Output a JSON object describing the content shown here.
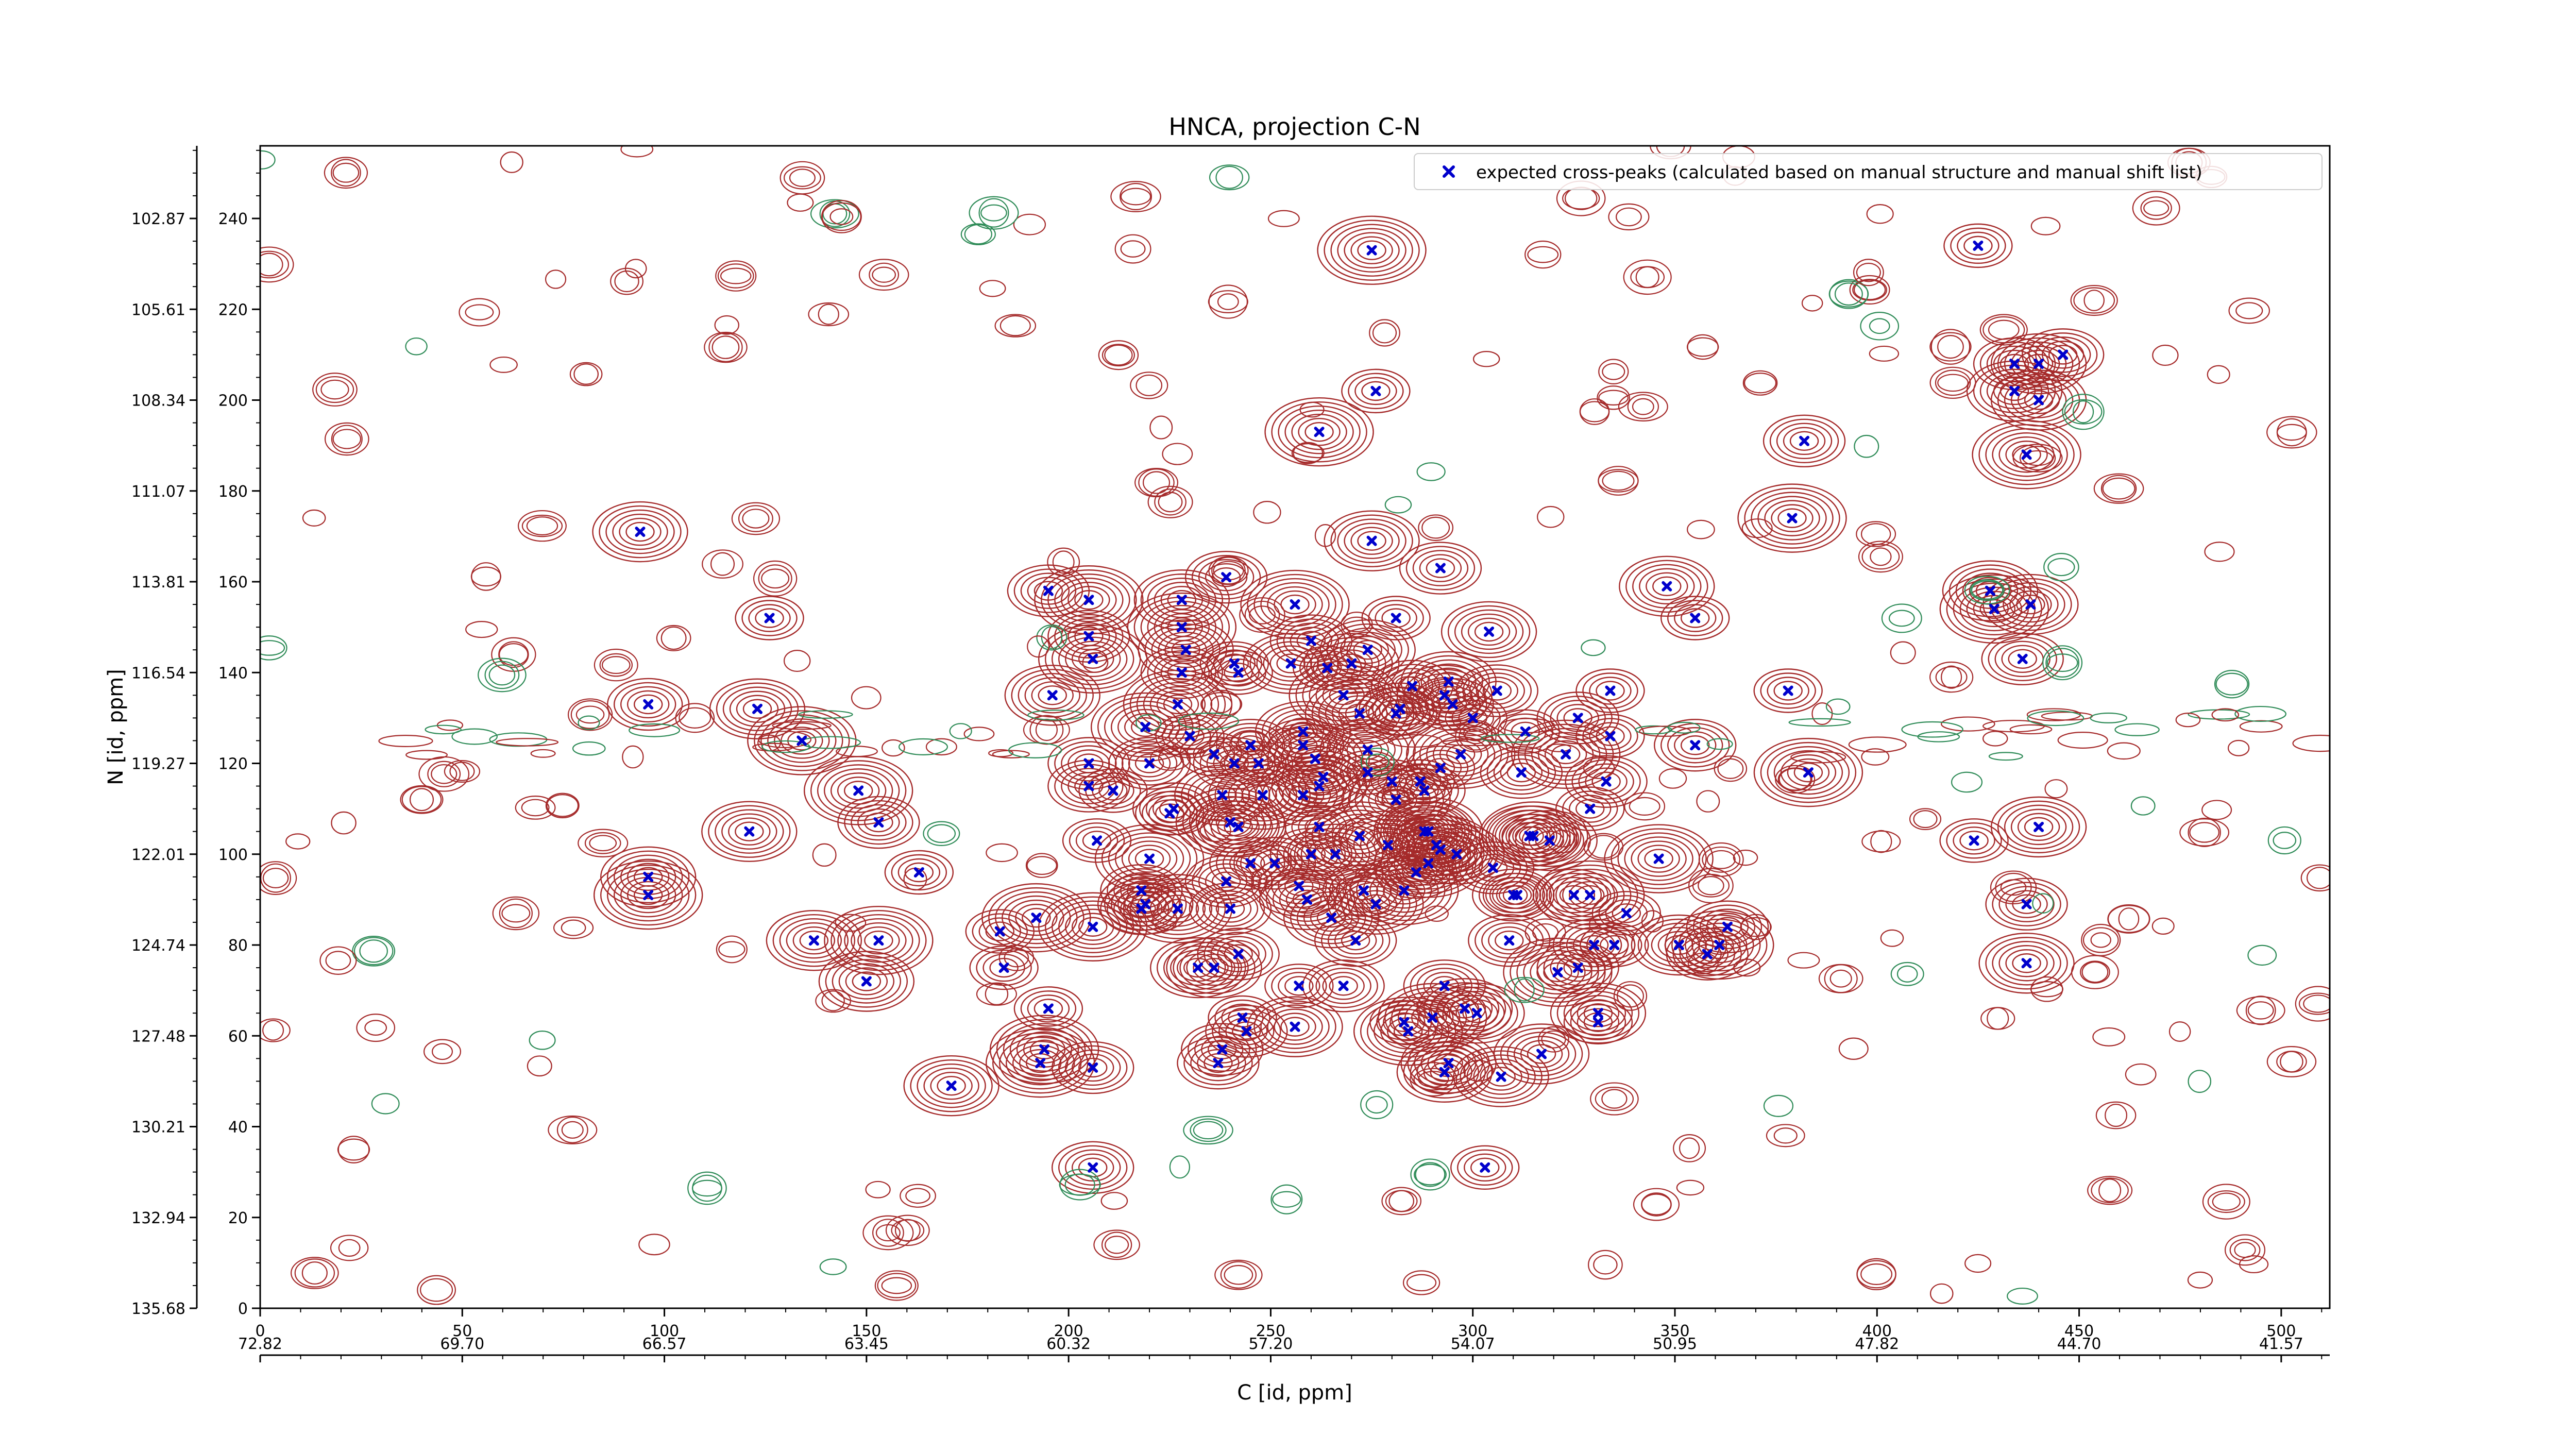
{
  "chart_data": {
    "type": "scatter",
    "title": "HNCA, projection C-N",
    "xlabel": "C [id, ppm]",
    "ylabel": "N [id, ppm]",
    "xlim": [
      0,
      512
    ],
    "ylim": [
      0,
      256
    ],
    "x_ticks": [
      0,
      50,
      100,
      150,
      200,
      250,
      300,
      350,
      400,
      450,
      500
    ],
    "y_ticks": [
      0,
      20,
      40,
      60,
      80,
      100,
      120,
      140,
      160,
      180,
      200,
      220,
      240
    ],
    "secondary_x_ticks": [
      "72.82",
      "69.70",
      "66.57",
      "63.45",
      "60.32",
      "57.20",
      "54.07",
      "50.95",
      "47.82",
      "44.70",
      "41.57"
    ],
    "secondary_y_ticks": [
      "135.68",
      "132.94",
      "130.21",
      "127.48",
      "124.74",
      "122.01",
      "119.27",
      "116.54",
      "113.81",
      "111.07",
      "108.34",
      "105.61",
      "102.87"
    ],
    "legend": {
      "position": "top-right",
      "entries": [
        {
          "label": "expected cross-peaks (calculated based on manual structure and manual shift list)",
          "color": "#0000cc",
          "marker": "x"
        }
      ]
    },
    "contour_colors": {
      "positive": "#a52a2a",
      "negative": "#2e8b57"
    },
    "grid": false,
    "series": [
      {
        "name": "expected cross-peaks (calculated based on manual structure and manual shift list)",
        "points": [
          [
            94,
            171
          ],
          [
            96,
            133
          ],
          [
            96,
            95
          ],
          [
            96,
            91
          ],
          [
            121,
            105
          ],
          [
            123,
            132
          ],
          [
            126,
            152
          ],
          [
            134,
            125
          ],
          [
            137,
            81
          ],
          [
            148,
            114
          ],
          [
            150,
            72
          ],
          [
            153,
            107
          ],
          [
            153,
            81
          ],
          [
            163,
            96
          ],
          [
            171,
            49
          ],
          [
            183,
            83
          ],
          [
            184,
            75
          ],
          [
            192,
            86
          ],
          [
            193,
            54
          ],
          [
            194,
            57
          ],
          [
            195,
            66
          ],
          [
            195,
            158
          ],
          [
            196,
            135
          ],
          [
            205,
            120
          ],
          [
            205,
            115
          ],
          [
            205,
            148
          ],
          [
            205,
            156
          ],
          [
            206,
            143
          ],
          [
            206,
            31
          ],
          [
            206,
            53
          ],
          [
            206,
            84
          ],
          [
            207,
            103
          ],
          [
            211,
            114
          ],
          [
            218,
            92
          ],
          [
            218,
            88
          ],
          [
            219,
            89
          ],
          [
            219,
            128
          ],
          [
            220,
            120
          ],
          [
            220,
            99
          ],
          [
            225,
            109
          ],
          [
            226,
            110
          ],
          [
            227,
            88
          ],
          [
            227,
            133
          ],
          [
            228,
            140
          ],
          [
            228,
            156
          ],
          [
            228,
            150
          ],
          [
            229,
            145
          ],
          [
            230,
            126
          ],
          [
            232,
            75
          ],
          [
            236,
            122
          ],
          [
            236,
            75
          ],
          [
            237,
            54
          ],
          [
            238,
            113
          ],
          [
            238,
            57
          ],
          [
            239,
            94
          ],
          [
            239,
            161
          ],
          [
            240,
            88
          ],
          [
            240,
            107
          ],
          [
            241,
            120
          ],
          [
            241,
            142
          ],
          [
            242,
            78
          ],
          [
            242,
            140
          ],
          [
            242,
            106
          ],
          [
            243,
            64
          ],
          [
            244,
            61
          ],
          [
            245,
            98
          ],
          [
            245,
            124
          ],
          [
            247,
            120
          ],
          [
            248,
            113
          ],
          [
            251,
            98
          ],
          [
            255,
            142
          ],
          [
            256,
            155
          ],
          [
            256,
            62
          ],
          [
            257,
            93
          ],
          [
            257,
            71
          ],
          [
            258,
            113
          ],
          [
            258,
            124
          ],
          [
            258,
            127
          ],
          [
            259,
            90
          ],
          [
            260,
            100
          ],
          [
            260,
            147
          ],
          [
            261,
            121
          ],
          [
            262,
            106
          ],
          [
            262,
            115
          ],
          [
            262,
            193
          ],
          [
            263,
            117
          ],
          [
            264,
            141
          ],
          [
            265,
            86
          ],
          [
            266,
            100
          ],
          [
            268,
            71
          ],
          [
            268,
            135
          ],
          [
            270,
            142
          ],
          [
            271,
            81
          ],
          [
            272,
            131
          ],
          [
            272,
            104
          ],
          [
            273,
            92
          ],
          [
            274,
            118
          ],
          [
            274,
            145
          ],
          [
            274,
            123
          ],
          [
            275,
            233
          ],
          [
            275,
            169
          ],
          [
            276,
            89
          ],
          [
            276,
            202
          ],
          [
            279,
            102
          ],
          [
            280,
            116
          ],
          [
            281,
            152
          ],
          [
            281,
            131
          ],
          [
            281,
            112
          ],
          [
            282,
            132
          ],
          [
            283,
            92
          ],
          [
            283,
            63
          ],
          [
            284,
            61
          ],
          [
            285,
            137
          ],
          [
            286,
            96
          ],
          [
            287,
            116
          ],
          [
            288,
            114
          ],
          [
            288,
            105
          ],
          [
            289,
            98
          ],
          [
            289,
            105
          ],
          [
            290,
            64
          ],
          [
            291,
            102
          ],
          [
            292,
            101
          ],
          [
            292,
            163
          ],
          [
            292,
            119
          ],
          [
            293,
            71
          ],
          [
            293,
            52
          ],
          [
            293,
            135
          ],
          [
            294,
            54
          ],
          [
            294,
            138
          ],
          [
            295,
            133
          ],
          [
            296,
            100
          ],
          [
            297,
            122
          ],
          [
            298,
            66
          ],
          [
            300,
            130
          ],
          [
            301,
            65
          ],
          [
            303,
            31
          ],
          [
            304,
            149
          ],
          [
            305,
            97
          ],
          [
            306,
            136
          ],
          [
            307,
            51
          ],
          [
            309,
            81
          ],
          [
            310,
            91
          ],
          [
            311,
            91
          ],
          [
            312,
            118
          ],
          [
            313,
            127
          ],
          [
            314,
            104
          ],
          [
            315,
            104
          ],
          [
            317,
            56
          ],
          [
            319,
            103
          ],
          [
            321,
            74
          ],
          [
            323,
            122
          ],
          [
            325,
            91
          ],
          [
            326,
            75
          ],
          [
            326,
            130
          ],
          [
            329,
            110
          ],
          [
            329,
            91
          ],
          [
            330,
            80
          ],
          [
            331,
            63
          ],
          [
            331,
            65
          ],
          [
            333,
            116
          ],
          [
            334,
            126
          ],
          [
            334,
            136
          ],
          [
            335,
            80
          ],
          [
            338,
            87
          ],
          [
            346,
            99
          ],
          [
            348,
            159
          ],
          [
            351,
            80
          ],
          [
            355,
            124
          ],
          [
            355,
            152
          ],
          [
            358,
            78
          ],
          [
            361,
            80
          ],
          [
            363,
            84
          ],
          [
            378,
            136
          ],
          [
            379,
            174
          ],
          [
            382,
            191
          ],
          [
            383,
            118
          ],
          [
            424,
            103
          ],
          [
            425,
            234
          ],
          [
            428,
            158
          ],
          [
            429,
            154
          ],
          [
            434,
            208
          ],
          [
            434,
            202
          ],
          [
            436,
            143
          ],
          [
            437,
            188
          ],
          [
            437,
            89
          ],
          [
            437,
            76
          ],
          [
            438,
            155
          ],
          [
            440,
            106
          ],
          [
            440,
            200
          ],
          [
            440,
            208
          ],
          [
            446,
            210
          ]
        ]
      }
    ]
  }
}
